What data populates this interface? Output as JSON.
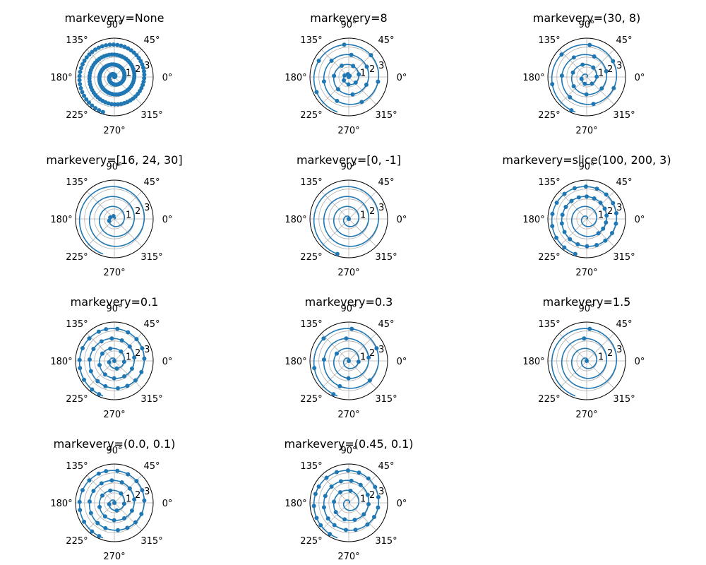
{
  "chart_data": {
    "type": "polar-line",
    "line_color": "#1f77b4",
    "theta_tick_labels": [
      "0°",
      "45°",
      "90°",
      "135°",
      "180°",
      "225°",
      "270°",
      "315°"
    ],
    "theta_ticks_deg": [
      0,
      45,
      90,
      135,
      180,
      225,
      270,
      315
    ],
    "r_tick_labels": [
      "1",
      "2",
      "3"
    ],
    "r_ticks": [
      1,
      2,
      3
    ],
    "rlim": [
      0,
      3.9
    ],
    "curve": {
      "r_from": 0,
      "r_to": 3.7,
      "points": 200,
      "turns": 3.7
    },
    "grid": true,
    "panels": [
      {
        "title": "markevery=None",
        "markevery": "None"
      },
      {
        "title": "markevery=8",
        "markevery": "8"
      },
      {
        "title": "markevery=(30, 8)",
        "markevery": "(30, 8)"
      },
      {
        "title": "markevery=[16, 24, 30]",
        "markevery": "[16, 24, 30]"
      },
      {
        "title": "markevery=[0, -1]",
        "markevery": "[0, -1]"
      },
      {
        "title": "markevery=slice(100, 200, 3)",
        "markevery": "slice(100, 200, 3)"
      },
      {
        "title": "markevery=0.1",
        "markevery": "0.1"
      },
      {
        "title": "markevery=0.3",
        "markevery": "0.3"
      },
      {
        "title": "markevery=1.5",
        "markevery": "1.5"
      },
      {
        "title": "markevery=(0.0, 0.1)",
        "markevery": "(0.0, 0.1)"
      },
      {
        "title": "markevery=(0.45, 0.1)",
        "markevery": "(0.45, 0.1)"
      }
    ]
  }
}
